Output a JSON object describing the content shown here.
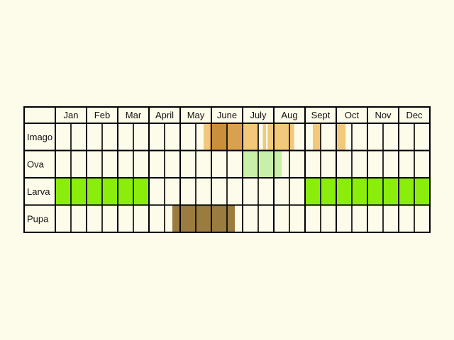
{
  "chart_data": {
    "type": "table",
    "title": "",
    "months": [
      "Jan",
      "Feb",
      "Mar",
      "April",
      "May",
      "June",
      "July",
      "Aug",
      "Sept",
      "Oct",
      "Nov",
      "Dec"
    ],
    "stages": [
      {
        "name": "Imago",
        "color": "#f2c97a",
        "periods": [
          {
            "start": 4.75,
            "end": 6.0,
            "color": "#f2c97a"
          },
          {
            "start": 4.95,
            "end": 5.0,
            "color": "#dca258"
          },
          {
            "start": 5.0,
            "end": 5.5,
            "color": "#c98f3c"
          },
          {
            "start": 5.5,
            "end": 6.0,
            "color": "#d9a04f"
          },
          {
            "start": 6.0,
            "end": 6.5,
            "color": "#f2c97a"
          },
          {
            "start": 6.65,
            "end": 6.75,
            "color": "#f2c97a"
          },
          {
            "start": 6.8,
            "end": 7.65,
            "color": "#f2c97a"
          },
          {
            "start": 8.25,
            "end": 8.5,
            "color": "#f2c97a"
          },
          {
            "start": 9.0,
            "end": 9.3,
            "color": "#f2c97a"
          }
        ]
      },
      {
        "name": "Ova",
        "color": "#c8f0a8",
        "periods": [
          {
            "start": 6.0,
            "end": 7.25,
            "color": "#c8f0a8"
          }
        ]
      },
      {
        "name": "Larva",
        "color": "#8aed0c",
        "periods": [
          {
            "start": 0.0,
            "end": 3.0,
            "color": "#8aed0c"
          },
          {
            "start": 8.0,
            "end": 12.0,
            "color": "#8aed0c"
          }
        ]
      },
      {
        "name": "Pupa",
        "color": "#9a7b40",
        "periods": [
          {
            "start": 3.75,
            "end": 5.75,
            "color": "#9a7b40"
          }
        ]
      }
    ],
    "subdivisions_per_month": 2
  }
}
